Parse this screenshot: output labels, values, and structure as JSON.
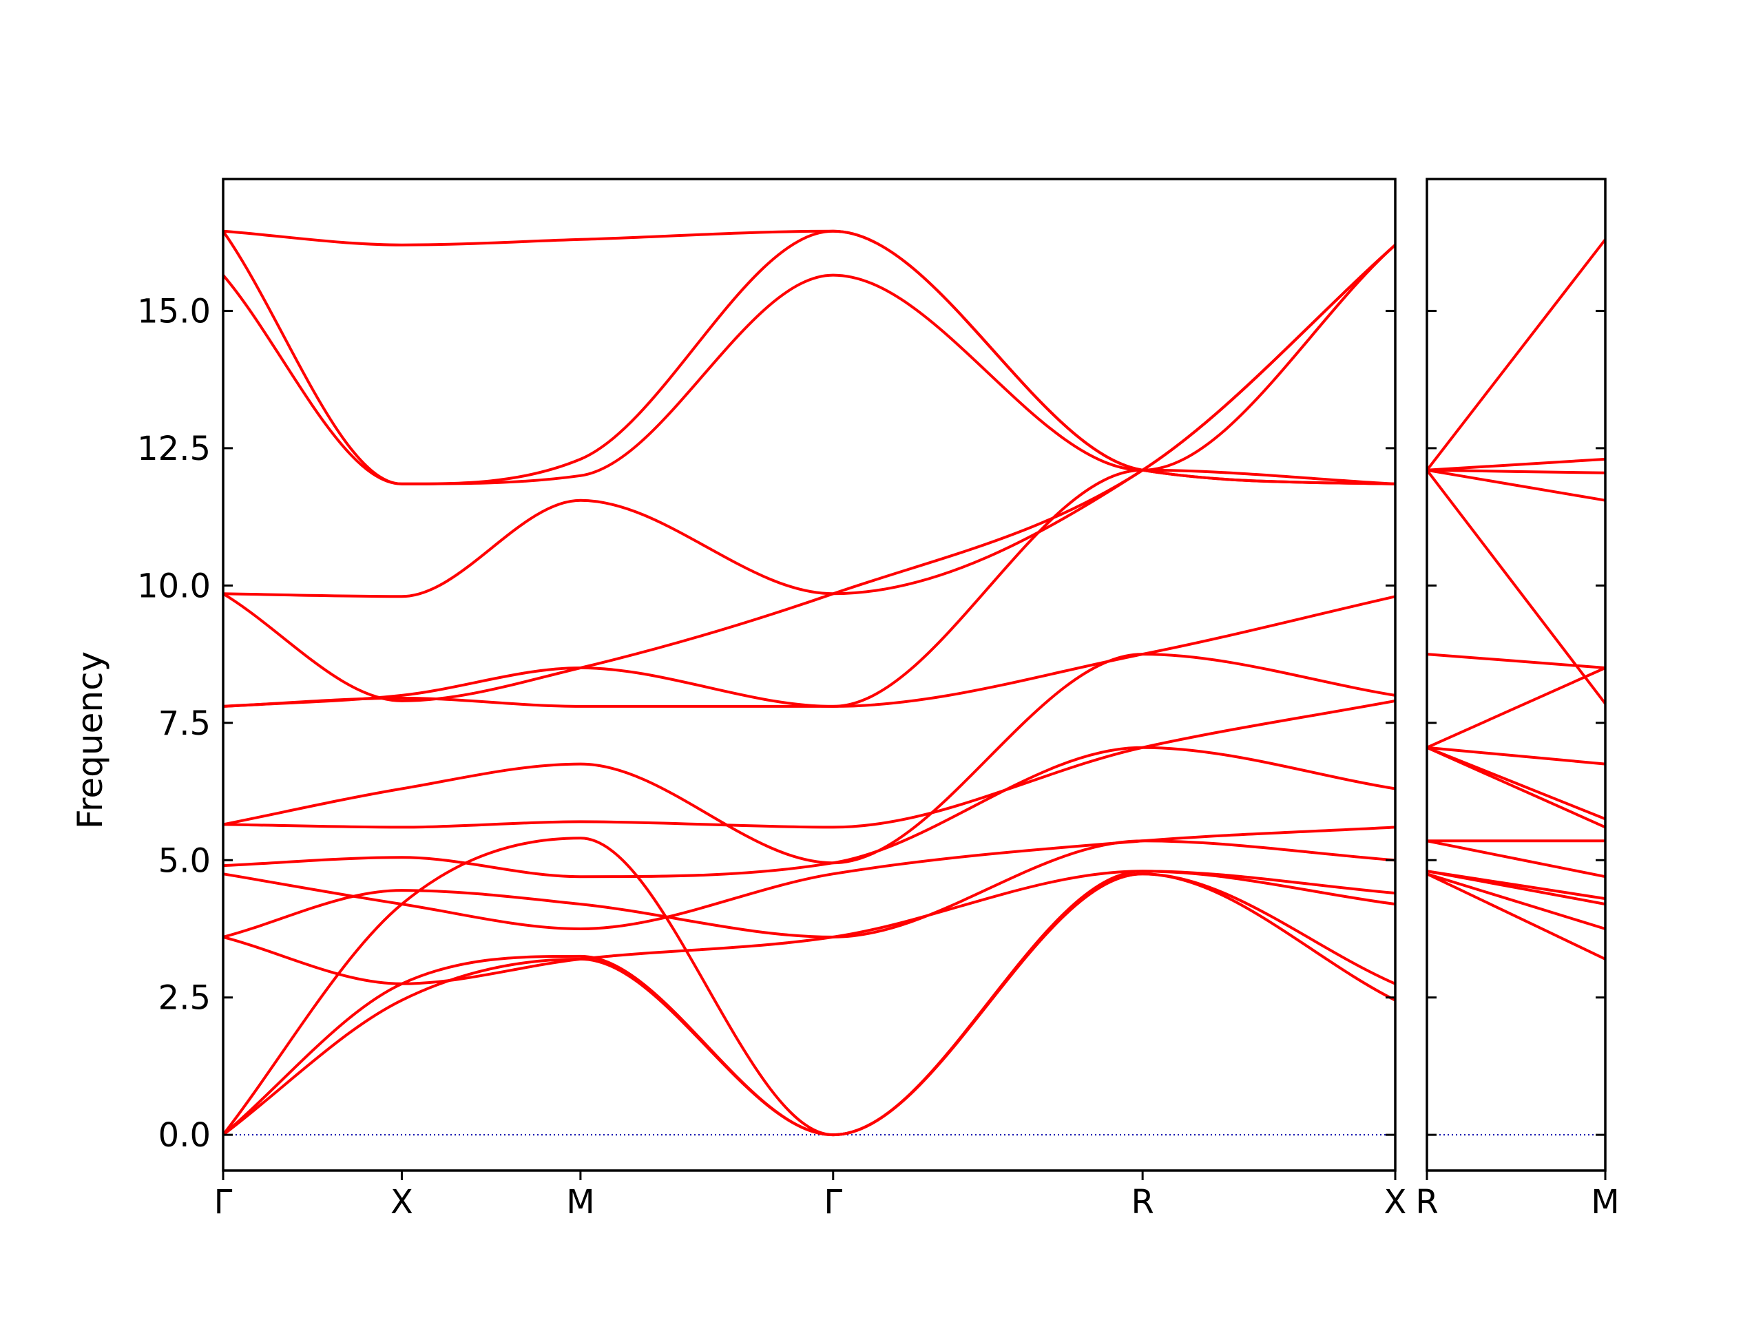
{
  "chart_data": {
    "type": "line",
    "ylabel": "Frequency",
    "xlabel": "",
    "ylim": [
      -0.65,
      17.4
    ],
    "yticks": [
      0.0,
      2.5,
      5.0,
      7.5,
      10.0,
      12.5,
      15.0
    ],
    "ytick_labels": [
      "0.0",
      "2.5",
      "5.0",
      "7.5",
      "10.0",
      "12.5",
      "15.0"
    ],
    "colors": {
      "bands": "#ff0000",
      "zero_line": "#0000aa",
      "axes": "#000000"
    },
    "panels": [
      {
        "name": "main",
        "path_points": [
          {
            "label": "Γ",
            "position": 0
          },
          {
            "label": "X",
            "position": 0.5
          },
          {
            "label": "M",
            "position": 1.0
          },
          {
            "label": "Γ",
            "position": 1.707
          },
          {
            "label": "R",
            "position": 2.573
          },
          {
            "label": "X",
            "position": 3.28
          }
        ],
        "bands": [
          {
            "x": [
              0,
              0.5,
              1.0,
              1.707,
              2.573,
              3.28
            ],
            "y": [
              0.0,
              2.45,
              3.2,
              0.0,
              4.75,
              2.45
            ]
          },
          {
            "x": [
              0,
              0.5,
              1.0,
              1.707,
              2.573,
              3.28
            ],
            "y": [
              0.0,
              2.75,
              3.25,
              0.0,
              4.75,
              2.75
            ]
          },
          {
            "x": [
              0,
              0.5,
              1.0,
              1.707,
              2.573,
              3.28
            ],
            "y": [
              0.0,
              4.2,
              5.4,
              0.0,
              4.8,
              4.2
            ]
          },
          {
            "x": [
              0,
              0.5,
              1.0,
              1.707,
              2.573,
              3.28
            ],
            "y": [
              3.6,
              2.75,
              3.2,
              3.6,
              4.8,
              4.4
            ]
          },
          {
            "x": [
              0,
              0.5,
              1.0,
              1.707,
              2.573,
              3.28
            ],
            "y": [
              3.6,
              4.45,
              4.2,
              3.6,
              5.35,
              5.0
            ]
          },
          {
            "x": [
              0,
              0.5,
              1.0,
              1.707,
              2.573,
              3.28
            ],
            "y": [
              4.75,
              4.2,
              3.75,
              4.75,
              5.35,
              5.6
            ]
          },
          {
            "x": [
              0,
              0.5,
              1.0,
              1.707,
              2.573,
              3.28
            ],
            "y": [
              4.9,
              5.05,
              4.7,
              4.95,
              7.05,
              6.3
            ]
          },
          {
            "x": [
              0,
              0.5,
              1.0,
              1.707,
              2.573,
              3.28
            ],
            "y": [
              5.65,
              5.6,
              5.7,
              5.6,
              7.05,
              7.9
            ]
          },
          {
            "x": [
              0,
              0.5,
              1.0,
              1.707,
              2.573,
              3.28
            ],
            "y": [
              5.65,
              6.3,
              6.75,
              4.95,
              8.75,
              8.0
            ]
          },
          {
            "x": [
              0,
              0.5,
              1.0,
              1.707,
              2.573,
              3.28
            ],
            "y": [
              7.8,
              7.95,
              7.8,
              7.8,
              8.75,
              9.8
            ]
          },
          {
            "x": [
              0,
              0.5,
              1.0,
              1.707,
              2.573,
              3.28
            ],
            "y": [
              7.8,
              8.0,
              8.5,
              7.8,
              12.1,
              11.85
            ]
          },
          {
            "x": [
              0,
              0.5,
              1.0,
              1.707,
              2.573,
              3.28
            ],
            "y": [
              9.85,
              7.9,
              8.5,
              9.85,
              12.1,
              16.2
            ]
          },
          {
            "x": [
              0,
              0.5,
              1.0,
              1.707,
              2.573,
              3.28
            ],
            "y": [
              9.85,
              9.8,
              11.55,
              9.85,
              12.1,
              16.2
            ]
          },
          {
            "x": [
              0,
              0.5,
              1.0,
              1.707,
              2.573,
              3.28
            ],
            "y": [
              15.65,
              11.85,
              12.0,
              15.65,
              12.1,
              16.2
            ]
          },
          {
            "x": [
              0,
              0.5,
              1.0,
              1.707,
              2.573,
              3.28
            ],
            "y": [
              16.45,
              11.85,
              12.3,
              16.45,
              12.1,
              11.85
            ]
          },
          {
            "x": [
              0,
              0.5,
              1.0,
              1.707,
              2.573,
              3.28
            ],
            "y": [
              16.45,
              16.2,
              16.3,
              16.45,
              12.1,
              11.85
            ]
          }
        ]
      },
      {
        "name": "right",
        "path_points": [
          {
            "label": "R",
            "position": 0
          },
          {
            "label": "M",
            "position": 0.5
          }
        ],
        "bands": [
          {
            "x": [
              0,
              0.5
            ],
            "y": [
              4.75,
              3.2
            ]
          },
          {
            "x": [
              0,
              0.5
            ],
            "y": [
              4.75,
              3.75
            ]
          },
          {
            "x": [
              0,
              0.5
            ],
            "y": [
              4.8,
              4.2
            ]
          },
          {
            "x": [
              0,
              0.5
            ],
            "y": [
              4.8,
              4.3
            ]
          },
          {
            "x": [
              0,
              0.5
            ],
            "y": [
              5.35,
              4.7
            ]
          },
          {
            "x": [
              0,
              0.5
            ],
            "y": [
              5.35,
              5.35
            ]
          },
          {
            "x": [
              0,
              0.5
            ],
            "y": [
              7.05,
              5.6
            ]
          },
          {
            "x": [
              0,
              0.5
            ],
            "y": [
              7.05,
              5.75
            ]
          },
          {
            "x": [
              0,
              0.5
            ],
            "y": [
              7.05,
              6.75
            ]
          },
          {
            "x": [
              0,
              0.5
            ],
            "y": [
              7.05,
              8.5
            ]
          },
          {
            "x": [
              0,
              0.5
            ],
            "y": [
              8.75,
              8.5
            ]
          },
          {
            "x": [
              0,
              0.5
            ],
            "y": [
              12.1,
              7.85
            ]
          },
          {
            "x": [
              0,
              0.5
            ],
            "y": [
              12.1,
              11.55
            ]
          },
          {
            "x": [
              0,
              0.5
            ],
            "y": [
              12.1,
              12.05
            ]
          },
          {
            "x": [
              0,
              0.5
            ],
            "y": [
              12.1,
              12.3
            ]
          },
          {
            "x": [
              0,
              0.5
            ],
            "y": [
              12.1,
              16.3
            ]
          }
        ]
      }
    ],
    "zero_line": {
      "y": 0.0,
      "style": "dotted"
    },
    "grid": false,
    "legend": "none"
  }
}
